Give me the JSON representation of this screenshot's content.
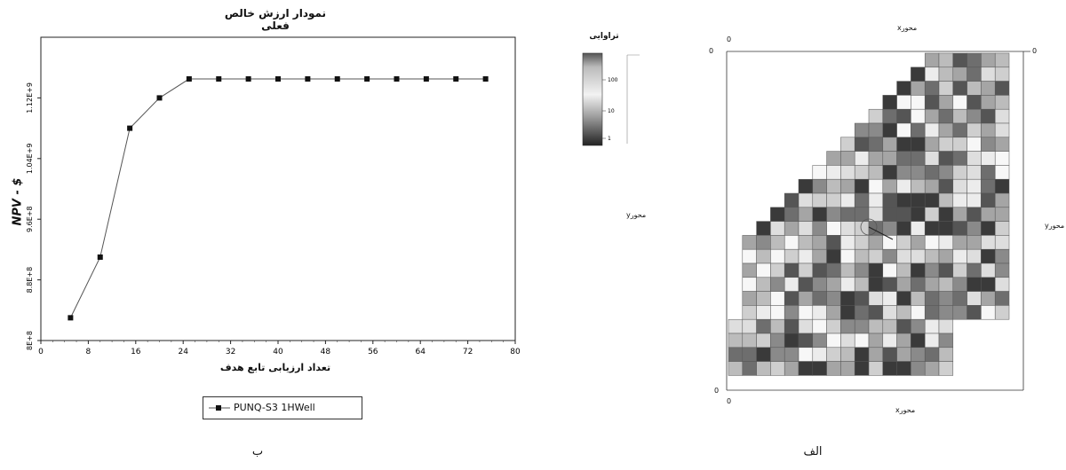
{
  "chart_data": [
    {
      "type": "line",
      "title": "نمودار ارزش خالص فعلی",
      "xlabel": "تعداد ارزیابی تابع هدف",
      "ylabel": "NPV - $",
      "xlim": [
        0,
        80
      ],
      "ylim": [
        800000000.0,
        1200000000.0
      ],
      "x_ticks": [
        0,
        8,
        16,
        24,
        32,
        40,
        48,
        56,
        64,
        72,
        80
      ],
      "x_tick_labels": [
        "0",
        "8",
        "16",
        "24",
        "32",
        "40",
        "48",
        "56",
        "64",
        "72",
        "80"
      ],
      "y_ticks": [
        800000000.0,
        880000000.0,
        960000000.0,
        1040000000.0,
        1120000000.0
      ],
      "y_tick_labels": [
        "8E+8",
        "8.8E+8",
        "9.6E+8",
        "1.04E+9",
        "1.12E+9"
      ],
      "grid": false,
      "legend_position": "bottom",
      "series": [
        {
          "name": "PUNQ-S3 1HWell",
          "color": "#555555",
          "marker": "square",
          "x": [
            5,
            10,
            15,
            20,
            25,
            30,
            35,
            40,
            45,
            50,
            55,
            60,
            65,
            70,
            75
          ],
          "y": [
            830000000,
            910000000,
            1080000000,
            1120000000,
            1145000000,
            1145000000,
            1145000000,
            1145000000,
            1145000000,
            1145000000,
            1145000000,
            1145000000,
            1145000000,
            1145000000,
            1145000000
          ]
        }
      ]
    },
    {
      "type": "heatmap",
      "xlabel_top": "محورx",
      "xlabel_bottom": "محورx",
      "ylabel_left": "محورy",
      "ylabel_right": "محورy",
      "colorbar_title": "تراوایی",
      "colorbar_ticks": [
        "100",
        "10",
        "1"
      ],
      "corner_labels": [
        "0",
        "0",
        "0",
        "0",
        "0"
      ]
    }
  ],
  "panels": {
    "left_label": "ب",
    "right_label": "الف"
  },
  "colors": {
    "line": "#555555",
    "marker": "#111111",
    "axis": "#222222"
  }
}
